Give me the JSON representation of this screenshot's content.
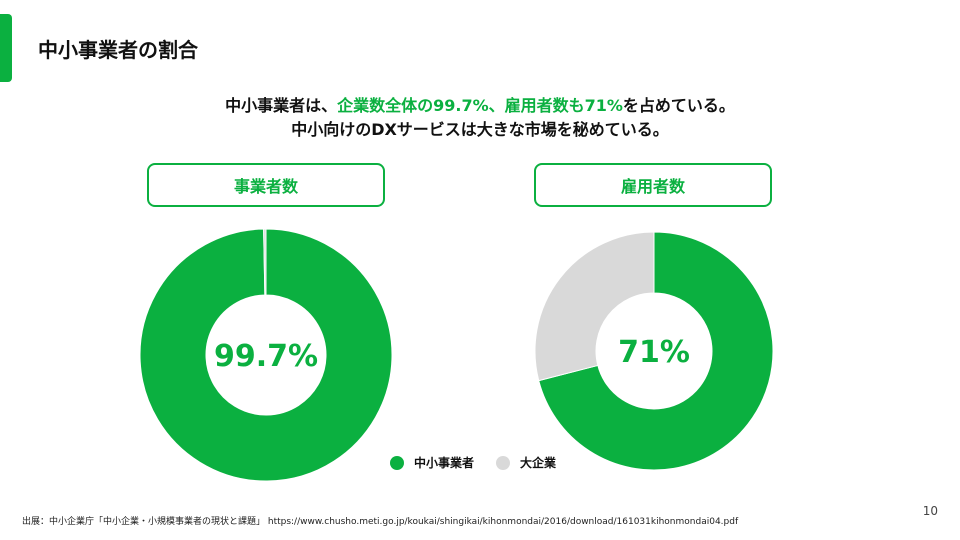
{
  "slide": {
    "title": "中小事業者の割合",
    "lead_line1_part1": "中小事業者は、",
    "lead_line1_highlight": "企業数全体の99.7%、雇用者数も71%",
    "lead_line1_part2": "を占めている。",
    "lead_line2": "中小向けのDXサービスは大きな市場を秘めている。",
    "source": "出展：中小企業庁「中小企業・小規模事業者の現状と課題」 https://www.chusho.meti.go.jp/koukai/shingikai/kihonmondai/2016/download/161031kihonmondai04.pdf",
    "page_number": "10"
  },
  "colors": {
    "accent": "#0bb040",
    "sme": "#0bb040",
    "large": "#d9d9d9"
  },
  "legend": [
    {
      "label": "中小事業者",
      "color": "#0bb040"
    },
    {
      "label": "大企業",
      "color": "#d9d9d9"
    }
  ],
  "chart_data": [
    {
      "type": "pie",
      "title": "事業者数",
      "center_label": "99.7%",
      "slices": [
        {
          "label": "中小事業者",
          "value": 99.7
        },
        {
          "label": "大企業",
          "value": 0.3
        }
      ]
    },
    {
      "type": "pie",
      "title": "雇用者数",
      "center_label": "71%",
      "slices": [
        {
          "label": "中小事業者",
          "value": 71
        },
        {
          "label": "大企業",
          "value": 29
        }
      ]
    }
  ]
}
